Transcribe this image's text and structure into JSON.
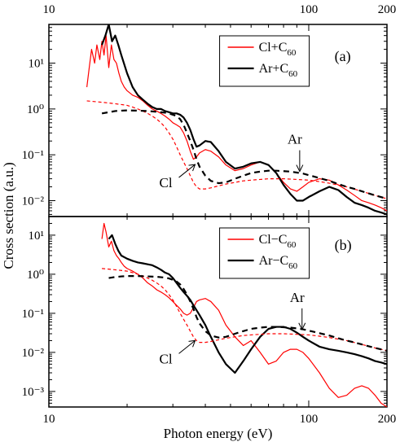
{
  "chart_data": {
    "type": "line",
    "xlabel": "Photon energy (eV)",
    "ylabel": "Cross section (a.u.)",
    "x_scale": "log",
    "y_scale": "log",
    "xlim": [
      10,
      200
    ],
    "x_ticks": [
      10,
      100,
      200
    ],
    "x_tick_labels": [
      "10",
      "100",
      "200"
    ],
    "panels": [
      {
        "label": "(a)",
        "ylim": [
          0.0045,
          70
        ],
        "y_ticks": [
          0.01,
          0.1,
          1,
          10
        ],
        "y_tick_labels": [
          "10⁻²",
          "10⁻¹",
          "10⁰",
          "10¹"
        ],
        "legend_position": "top-right",
        "legend": [
          {
            "label": "Cl+C",
            "sub": "60",
            "color": "#ff0000"
          },
          {
            "label": "Ar+C",
            "sub": "60",
            "color": "#000000"
          }
        ],
        "annotations": [
          {
            "text": "Ar",
            "x": 95,
            "y": 0.04
          },
          {
            "text": "Cl",
            "x": 35,
            "y": 0.025
          }
        ],
        "series": [
          {
            "name": "Cl+C60",
            "color": "#ff0000",
            "style": "solid",
            "width": 1.2,
            "x": [
              14,
              14.3,
              14.6,
              15,
              15.3,
              15.7,
              16,
              16.3,
              16.6,
              17,
              17.4,
              17.8,
              18.2,
              18.6,
              19,
              19.5,
              20,
              21,
              22,
              23,
              24,
              25,
              26,
              27,
              28,
              29,
              30,
              31,
              32,
              33,
              34,
              35,
              36,
              37,
              38,
              40,
              42,
              45,
              48,
              52,
              56,
              60,
              65,
              70,
              75,
              80,
              85,
              90,
              95,
              100,
              110,
              120,
              130,
              140,
              150,
              160,
              170,
              180,
              190,
              200
            ],
            "y": [
              3,
              8,
              20,
              10,
              25,
              12,
              30,
              15,
              40,
              8,
              25,
              12,
              10,
              6,
              4,
              3,
              2.5,
              2,
              1.8,
              1.5,
              1.2,
              1,
              0.9,
              0.8,
              0.7,
              0.6,
              0.5,
              0.45,
              0.4,
              0.3,
              0.2,
              0.12,
              0.08,
              0.09,
              0.11,
              0.13,
              0.12,
              0.09,
              0.06,
              0.045,
              0.05,
              0.06,
              0.07,
              0.06,
              0.04,
              0.025,
              0.018,
              0.016,
              0.02,
              0.025,
              0.03,
              0.028,
              0.022,
              0.017,
              0.013,
              0.01,
              0.009,
              0.008,
              0.007,
              0.006
            ]
          },
          {
            "name": "Ar+C60",
            "color": "#000000",
            "style": "solid",
            "width": 2.2,
            "x": [
              16,
              16.5,
              17,
              17.5,
              18,
              18.5,
              19,
              20,
              21,
              22,
              23,
              24,
              25,
              26,
              27,
              28,
              29,
              30,
              31,
              32,
              33,
              34,
              35,
              36,
              37,
              38,
              40,
              42,
              45,
              48,
              52,
              56,
              60,
              65,
              70,
              75,
              80,
              85,
              90,
              95,
              100,
              110,
              120,
              130,
              140,
              150,
              160,
              170,
              180,
              190,
              200
            ],
            "y": [
              25,
              40,
              70,
              30,
              40,
              25,
              15,
              6,
              3,
              2,
              1.6,
              1.3,
              1.1,
              1,
              1,
              0.9,
              0.85,
              0.8,
              0.8,
              0.75,
              0.65,
              0.5,
              0.35,
              0.22,
              0.15,
              0.16,
              0.2,
              0.19,
              0.12,
              0.07,
              0.05,
              0.055,
              0.065,
              0.07,
              0.06,
              0.04,
              0.022,
              0.014,
              0.01,
              0.01,
              0.012,
              0.016,
              0.02,
              0.017,
              0.012,
              0.009,
              0.008,
              0.007,
              0.006,
              0.0055,
              0.005
            ]
          },
          {
            "name": "Cl atom",
            "color": "#ff0000",
            "style": "dashed",
            "width": 1.2,
            "x": [
              14,
              15,
              16,
              17,
              18,
              19,
              20,
              21,
              22,
              23,
              24,
              25,
              26,
              27,
              28,
              29,
              30,
              31,
              32,
              33,
              34,
              35,
              36,
              37,
              38,
              40,
              42,
              45,
              48,
              52,
              56,
              60,
              65,
              70,
              80,
              90,
              100,
              110,
              120,
              140,
              160,
              180,
              200
            ],
            "y": [
              1.5,
              1.45,
              1.4,
              1.35,
              1.3,
              1.25,
              1.2,
              1.1,
              1,
              0.9,
              0.8,
              0.7,
              0.6,
              0.5,
              0.4,
              0.3,
              0.22,
              0.15,
              0.1,
              0.07,
              0.05,
              0.035,
              0.025,
              0.02,
              0.018,
              0.018,
              0.019,
              0.021,
              0.023,
              0.025,
              0.027,
              0.028,
              0.029,
              0.03,
              0.03,
              0.029,
              0.028,
              0.026,
              0.024,
              0.02,
              0.016,
              0.013,
              0.011
            ]
          },
          {
            "name": "Ar atom",
            "color": "#000000",
            "style": "dashed",
            "width": 2.2,
            "x": [
              16,
              17,
              18,
              19,
              20,
              22,
              24,
              26,
              27,
              28,
              29,
              30,
              31,
              32,
              33,
              34,
              35,
              36,
              37,
              38,
              40,
              42,
              45,
              48,
              52,
              56,
              60,
              65,
              70,
              75,
              80,
              85,
              90,
              95,
              100,
              110,
              120,
              130,
              140,
              150,
              160,
              180,
              200
            ],
            "y": [
              0.8,
              0.85,
              0.9,
              0.92,
              0.93,
              0.92,
              0.9,
              0.87,
              0.85,
              0.83,
              0.8,
              0.75,
              0.7,
              0.6,
              0.45,
              0.3,
              0.2,
              0.13,
              0.08,
              0.055,
              0.035,
              0.027,
              0.024,
              0.025,
              0.03,
              0.035,
              0.04,
              0.043,
              0.045,
              0.045,
              0.044,
              0.043,
              0.041,
              0.039,
              0.036,
              0.031,
              0.027,
              0.023,
              0.02,
              0.018,
              0.016,
              0.013,
              0.011
            ]
          }
        ]
      },
      {
        "label": "(b)",
        "ylim": [
          0.0004,
          30
        ],
        "y_ticks": [
          0.001,
          0.01,
          0.1,
          1,
          10
        ],
        "y_tick_labels": [
          "10⁻³",
          "10⁻²",
          "10⁻¹",
          "10⁰",
          "10¹"
        ],
        "legend_position": "top-right",
        "legend": [
          {
            "label": "Cl−C",
            "sub": "60",
            "color": "#ff0000"
          },
          {
            "label": "Ar−C",
            "sub": "60",
            "color": "#000000"
          }
        ],
        "annotations": [
          {
            "text": "Ar",
            "x": 97,
            "y": 0.035
          },
          {
            "text": "Cl",
            "x": 35,
            "y": 0.007
          }
        ],
        "series": [
          {
            "name": "Cl-C60",
            "color": "#ff0000",
            "style": "solid",
            "width": 1.2,
            "x": [
              16,
              16.3,
              16.6,
              17,
              17.4,
              17.8,
              18.2,
              18.6,
              19,
              19.5,
              20,
              21,
              22,
              23,
              24,
              25,
              26,
              27,
              28,
              29,
              30,
              31,
              32,
              33,
              34,
              35,
              36,
              37,
              38,
              40,
              42,
              45,
              48,
              52,
              56,
              60,
              65,
              70,
              75,
              80,
              85,
              90,
              95,
              100,
              110,
              120,
              130,
              140,
              150,
              160,
              170,
              180,
              190,
              200
            ],
            "y": [
              8,
              20,
              12,
              5,
              7,
              4,
              3,
              2.5,
              2,
              1.6,
              1.4,
              1.2,
              1,
              0.8,
              0.6,
              0.5,
              0.4,
              0.35,
              0.3,
              0.25,
              0.2,
              0.16,
              0.13,
              0.1,
              0.09,
              0.1,
              0.14,
              0.2,
              0.22,
              0.24,
              0.2,
              0.12,
              0.05,
              0.025,
              0.015,
              0.02,
              0.01,
              0.005,
              0.006,
              0.01,
              0.012,
              0.012,
              0.01,
              0.007,
              0.003,
              0.0012,
              0.0007,
              0.0008,
              0.0012,
              0.0014,
              0.0012,
              0.0008,
              0.0005,
              0.0004
            ]
          },
          {
            "name": "Ar-C60",
            "color": "#000000",
            "style": "solid",
            "width": 2.2,
            "x": [
              17,
              17.5,
              18,
              18.5,
              19,
              20,
              21,
              22,
              23,
              24,
              25,
              26,
              27,
              28,
              29,
              30,
              31,
              32,
              33,
              34,
              35,
              36,
              37,
              38,
              40,
              42,
              45,
              48,
              52,
              56,
              60,
              65,
              70,
              75,
              80,
              85,
              90,
              95,
              100,
              110,
              120,
              130,
              140,
              150,
              160,
              170,
              180,
              190,
              200
            ],
            "y": [
              8,
              10,
              6,
              4,
              3,
              2.5,
              2.2,
              2,
              1.9,
              1.8,
              1.7,
              1.5,
              1.3,
              1.1,
              1,
              0.8,
              0.6,
              0.45,
              0.35,
              0.28,
              0.22,
              0.16,
              0.12,
              0.09,
              0.05,
              0.025,
              0.01,
              0.005,
              0.003,
              0.006,
              0.012,
              0.025,
              0.04,
              0.045,
              0.045,
              0.04,
              0.032,
              0.025,
              0.02,
              0.014,
              0.012,
              0.011,
              0.01,
              0.009,
              0.008,
              0.007,
              0.006,
              0.0055,
              0.005
            ]
          },
          {
            "name": "Cl atom",
            "color": "#ff0000",
            "style": "dashed",
            "width": 1.2,
            "x": [
              16,
              17,
              18,
              19,
              20,
              21,
              22,
              23,
              24,
              25,
              26,
              27,
              28,
              29,
              30,
              31,
              32,
              33,
              34,
              35,
              36,
              37,
              38,
              40,
              42,
              45,
              48,
              52,
              56,
              60,
              65,
              70,
              80,
              90,
              100,
              110,
              120,
              140,
              160,
              180,
              200
            ],
            "y": [
              1.4,
              1.35,
              1.3,
              1.25,
              1.2,
              1.1,
              1,
              0.9,
              0.8,
              0.7,
              0.6,
              0.5,
              0.4,
              0.3,
              0.22,
              0.15,
              0.1,
              0.07,
              0.05,
              0.035,
              0.025,
              0.02,
              0.018,
              0.018,
              0.019,
              0.021,
              0.023,
              0.025,
              0.027,
              0.028,
              0.029,
              0.03,
              0.03,
              0.029,
              0.028,
              0.026,
              0.024,
              0.02,
              0.016,
              0.013,
              0.011
            ]
          },
          {
            "name": "Ar atom",
            "color": "#000000",
            "style": "dashed",
            "width": 2.2,
            "x": [
              17,
              18,
              19,
              20,
              22,
              24,
              26,
              27,
              28,
              29,
              30,
              31,
              32,
              33,
              34,
              35,
              36,
              37,
              38,
              40,
              42,
              45,
              48,
              52,
              56,
              60,
              65,
              70,
              75,
              80,
              85,
              90,
              95,
              100,
              110,
              120,
              130,
              140,
              150,
              160,
              180,
              200
            ],
            "y": [
              0.8,
              0.85,
              0.88,
              0.9,
              0.9,
              0.88,
              0.86,
              0.84,
              0.82,
              0.78,
              0.72,
              0.65,
              0.55,
              0.42,
              0.3,
              0.2,
              0.13,
              0.08,
              0.055,
              0.035,
              0.027,
              0.024,
              0.025,
              0.03,
              0.035,
              0.04,
              0.043,
              0.045,
              0.045,
              0.044,
              0.043,
              0.041,
              0.039,
              0.036,
              0.031,
              0.027,
              0.023,
              0.02,
              0.018,
              0.016,
              0.013,
              0.011
            ]
          }
        ]
      }
    ]
  }
}
